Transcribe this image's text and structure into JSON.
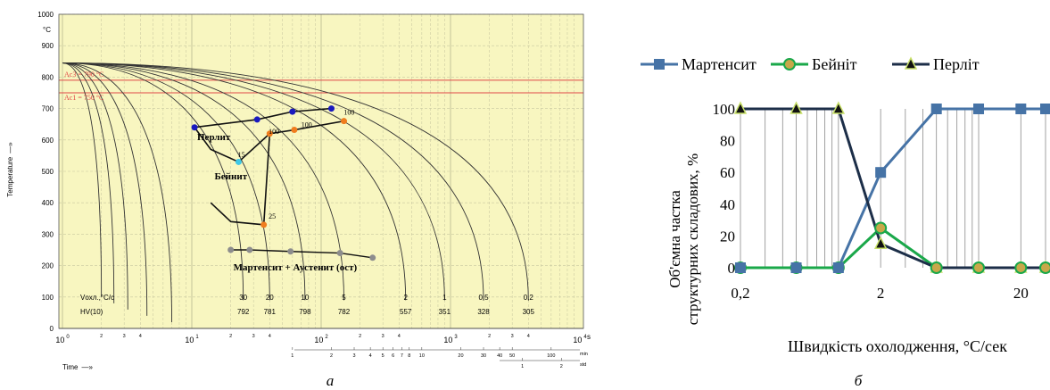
{
  "captions": {
    "left": "а",
    "right": "б"
  },
  "chart_data": [
    {
      "type": "line",
      "subtype": "cct-diagram",
      "ylabel": "Temperature",
      "ylabel_arrow": "—»",
      "yunit": "°C",
      "xlabel": "Time",
      "xlabel_arrow": "—»",
      "xunit": "s",
      "x_scale": "log",
      "xlim": [
        1,
        10000
      ],
      "ylim": [
        0,
        1000
      ],
      "y_ticks": [
        0,
        100,
        200,
        300,
        400,
        500,
        600,
        700,
        800,
        900,
        1000
      ],
      "x_major_ticks": [
        {
          "v": 1,
          "base": "10",
          "exp": "0"
        },
        {
          "v": 10,
          "base": "10",
          "exp": "1"
        },
        {
          "v": 100,
          "base": "10",
          "exp": "2"
        },
        {
          "v": 1000,
          "base": "10",
          "exp": "3"
        },
        {
          "v": 10000,
          "base": "10",
          "exp": "4"
        }
      ],
      "x_minor_labels": [
        "2",
        "3",
        "4",
        "2",
        "3",
        "4",
        "2",
        "3",
        "4",
        "2",
        "3",
        "4"
      ],
      "min_scale": {
        "unit": "min",
        "ticks": [
          "1",
          "2",
          "3",
          "4",
          "5",
          "6",
          "7",
          "8",
          "10",
          "20",
          "30",
          "40",
          "50",
          "100"
        ]
      },
      "std_scale": {
        "unit": "std",
        "ticks": [
          "1",
          "2"
        ]
      },
      "ac_lines": [
        {
          "label": "Ac3 = 790 °C",
          "value": 790
        },
        {
          "label": "Ac1 = 750 °C",
          "value": 750
        }
      ],
      "regions": [
        "Перлит",
        "Бейнит",
        "Мартенсит + Аустенит (ост)"
      ],
      "cooling_rates_label": "Vохл.,°C/c",
      "hardness_label": "HV(10)",
      "cooling_rates": [
        "30",
        "20",
        "10",
        "5",
        "2",
        "1",
        "0,5",
        "0,2"
      ],
      "hardness": [
        "792",
        "781",
        "798",
        "782",
        "557",
        "351",
        "328",
        "305"
      ],
      "cooling_curves": [
        {
          "end_t": 2,
          "end_temp": 100,
          "rate": "",
          "hv": ""
        },
        {
          "end_t": 2.5,
          "end_temp": 80,
          "rate": "",
          "hv": ""
        },
        {
          "end_t": 3.2,
          "end_temp": 60,
          "rate": "",
          "hv": ""
        },
        {
          "end_t": 4.5,
          "end_temp": 40,
          "rate": "",
          "hv": ""
        },
        {
          "end_t": 7,
          "end_temp": 20,
          "rate": "",
          "hv": ""
        },
        {
          "end_t": 25,
          "end_temp": 90,
          "rate": "30",
          "hv": "792"
        },
        {
          "end_t": 40,
          "end_temp": 90,
          "rate": "20",
          "hv": "781"
        },
        {
          "end_t": 75,
          "end_temp": 90,
          "rate": "10",
          "hv": "798"
        },
        {
          "end_t": 150,
          "end_temp": 90,
          "rate": "5",
          "hv": "782"
        },
        {
          "end_t": 450,
          "end_temp": 90,
          "rate": "2",
          "hv": "557"
        },
        {
          "end_t": 900,
          "end_temp": 90,
          "rate": "1",
          "hv": "351"
        },
        {
          "end_t": 1800,
          "end_temp": 90,
          "rate": "0,5",
          "hv": "328"
        },
        {
          "end_t": 4000,
          "end_temp": 90,
          "rate": "0,2",
          "hv": "305"
        }
      ],
      "pearlite_start": [
        [
          10.5,
          640
        ],
        [
          32,
          665
        ],
        [
          60,
          690
        ],
        [
          120,
          700
        ]
      ],
      "pearlite_end": [
        [
          40,
          620
        ],
        [
          62,
          632
        ],
        [
          150,
          660
        ]
      ],
      "bainite_start": [
        [
          10.5,
          640
        ],
        [
          14,
          570
        ],
        [
          23,
          530
        ],
        [
          40,
          620
        ]
      ],
      "bainite_end": [
        [
          14,
          400
        ],
        [
          20,
          340
        ],
        [
          36,
          330
        ],
        [
          40,
          620
        ]
      ],
      "martensite_start": [
        [
          20,
          250
        ],
        [
          28,
          250
        ],
        [
          58,
          245
        ],
        [
          140,
          240
        ],
        [
          250,
          225
        ]
      ],
      "point_labels": [
        {
          "t": 22,
          "temp": 545,
          "text": "15"
        },
        {
          "t": 38,
          "temp": 620,
          "text": "100"
        },
        {
          "t": 38,
          "temp": 350,
          "text": "25"
        },
        {
          "t": 68,
          "temp": 640,
          "text": "100"
        },
        {
          "t": 145,
          "temp": 680,
          "text": "100"
        }
      ],
      "colors": {
        "plot_bg": "#f8f6c0",
        "curve": "#333333",
        "ac": "#e04848",
        "pearlite_start": "#1a1abf",
        "pearlite_end": "#f07d1e",
        "bainite_mark": "#3ec8e6",
        "martensite_mark": "#8d8d8d"
      }
    },
    {
      "type": "line",
      "x_scale": "log",
      "xlabel": "Швидкість охолодження, °С/сек",
      "ylabel": "Об'ємна частка структурних складових, %",
      "ylim": [
        0,
        100
      ],
      "xlim": [
        0.2,
        30
      ],
      "y_ticks": [
        0,
        20,
        40,
        60,
        80,
        100
      ],
      "x_ticks": [
        {
          "v": 0.2,
          "label": "0,2"
        },
        {
          "v": 2,
          "label": "2"
        },
        {
          "v": 20,
          "label": "20"
        }
      ],
      "x": [
        0.2,
        0.5,
        1,
        2,
        5,
        10,
        20,
        30
      ],
      "series": [
        {
          "name": "Мартенсит",
          "values": [
            0,
            0,
            0,
            60,
            100,
            100,
            100,
            100
          ],
          "color": "#4673a6",
          "marker": "square"
        },
        {
          "name": "Бейніт",
          "values": [
            0,
            0,
            0,
            25,
            0,
            0,
            0,
            0
          ],
          "color": "#1aa84a",
          "marker": "circle"
        },
        {
          "name": "Перліт",
          "values": [
            100,
            100,
            100,
            15,
            0,
            0,
            0,
            0
          ],
          "color": "#1c2e48",
          "marker": "triangle"
        }
      ],
      "legend": "top",
      "grid": "vertical"
    }
  ]
}
